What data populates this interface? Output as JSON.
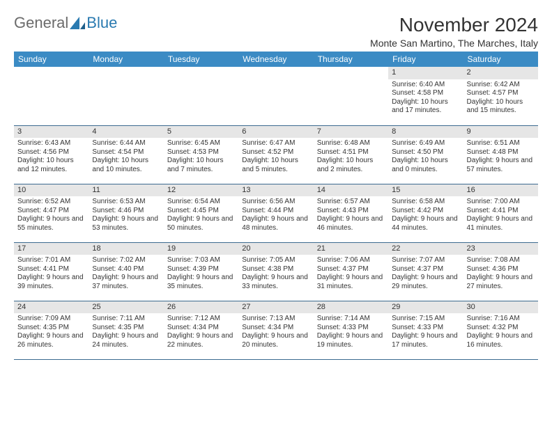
{
  "brand": {
    "part1": "General",
    "part2": "Blue"
  },
  "title": "November 2024",
  "location": "Monte San Martino, The Marches, Italy",
  "colors": {
    "header_bg": "#3b8bc4",
    "header_text": "#ffffff",
    "daynum_bg": "#e6e6e6",
    "rule": "#3b6a8f",
    "text": "#333333",
    "logo_general": "#6b6b6b",
    "logo_blue": "#2a7ab0"
  },
  "dayHeaders": [
    "Sunday",
    "Monday",
    "Tuesday",
    "Wednesday",
    "Thursday",
    "Friday",
    "Saturday"
  ],
  "weeks": [
    [
      null,
      null,
      null,
      null,
      null,
      {
        "n": "1",
        "sr": "6:40 AM",
        "ss": "4:58 PM",
        "dl": "10 hours and 17 minutes."
      },
      {
        "n": "2",
        "sr": "6:42 AM",
        "ss": "4:57 PM",
        "dl": "10 hours and 15 minutes."
      }
    ],
    [
      {
        "n": "3",
        "sr": "6:43 AM",
        "ss": "4:56 PM",
        "dl": "10 hours and 12 minutes."
      },
      {
        "n": "4",
        "sr": "6:44 AM",
        "ss": "4:54 PM",
        "dl": "10 hours and 10 minutes."
      },
      {
        "n": "5",
        "sr": "6:45 AM",
        "ss": "4:53 PM",
        "dl": "10 hours and 7 minutes."
      },
      {
        "n": "6",
        "sr": "6:47 AM",
        "ss": "4:52 PM",
        "dl": "10 hours and 5 minutes."
      },
      {
        "n": "7",
        "sr": "6:48 AM",
        "ss": "4:51 PM",
        "dl": "10 hours and 2 minutes."
      },
      {
        "n": "8",
        "sr": "6:49 AM",
        "ss": "4:50 PM",
        "dl": "10 hours and 0 minutes."
      },
      {
        "n": "9",
        "sr": "6:51 AM",
        "ss": "4:48 PM",
        "dl": "9 hours and 57 minutes."
      }
    ],
    [
      {
        "n": "10",
        "sr": "6:52 AM",
        "ss": "4:47 PM",
        "dl": "9 hours and 55 minutes."
      },
      {
        "n": "11",
        "sr": "6:53 AM",
        "ss": "4:46 PM",
        "dl": "9 hours and 53 minutes."
      },
      {
        "n": "12",
        "sr": "6:54 AM",
        "ss": "4:45 PM",
        "dl": "9 hours and 50 minutes."
      },
      {
        "n": "13",
        "sr": "6:56 AM",
        "ss": "4:44 PM",
        "dl": "9 hours and 48 minutes."
      },
      {
        "n": "14",
        "sr": "6:57 AM",
        "ss": "4:43 PM",
        "dl": "9 hours and 46 minutes."
      },
      {
        "n": "15",
        "sr": "6:58 AM",
        "ss": "4:42 PM",
        "dl": "9 hours and 44 minutes."
      },
      {
        "n": "16",
        "sr": "7:00 AM",
        "ss": "4:41 PM",
        "dl": "9 hours and 41 minutes."
      }
    ],
    [
      {
        "n": "17",
        "sr": "7:01 AM",
        "ss": "4:41 PM",
        "dl": "9 hours and 39 minutes."
      },
      {
        "n": "18",
        "sr": "7:02 AM",
        "ss": "4:40 PM",
        "dl": "9 hours and 37 minutes."
      },
      {
        "n": "19",
        "sr": "7:03 AM",
        "ss": "4:39 PM",
        "dl": "9 hours and 35 minutes."
      },
      {
        "n": "20",
        "sr": "7:05 AM",
        "ss": "4:38 PM",
        "dl": "9 hours and 33 minutes."
      },
      {
        "n": "21",
        "sr": "7:06 AM",
        "ss": "4:37 PM",
        "dl": "9 hours and 31 minutes."
      },
      {
        "n": "22",
        "sr": "7:07 AM",
        "ss": "4:37 PM",
        "dl": "9 hours and 29 minutes."
      },
      {
        "n": "23",
        "sr": "7:08 AM",
        "ss": "4:36 PM",
        "dl": "9 hours and 27 minutes."
      }
    ],
    [
      {
        "n": "24",
        "sr": "7:09 AM",
        "ss": "4:35 PM",
        "dl": "9 hours and 26 minutes."
      },
      {
        "n": "25",
        "sr": "7:11 AM",
        "ss": "4:35 PM",
        "dl": "9 hours and 24 minutes."
      },
      {
        "n": "26",
        "sr": "7:12 AM",
        "ss": "4:34 PM",
        "dl": "9 hours and 22 minutes."
      },
      {
        "n": "27",
        "sr": "7:13 AM",
        "ss": "4:34 PM",
        "dl": "9 hours and 20 minutes."
      },
      {
        "n": "28",
        "sr": "7:14 AM",
        "ss": "4:33 PM",
        "dl": "9 hours and 19 minutes."
      },
      {
        "n": "29",
        "sr": "7:15 AM",
        "ss": "4:33 PM",
        "dl": "9 hours and 17 minutes."
      },
      {
        "n": "30",
        "sr": "7:16 AM",
        "ss": "4:32 PM",
        "dl": "9 hours and 16 minutes."
      }
    ]
  ],
  "labels": {
    "sunrise": "Sunrise:",
    "sunset": "Sunset:",
    "daylight": "Daylight:"
  }
}
